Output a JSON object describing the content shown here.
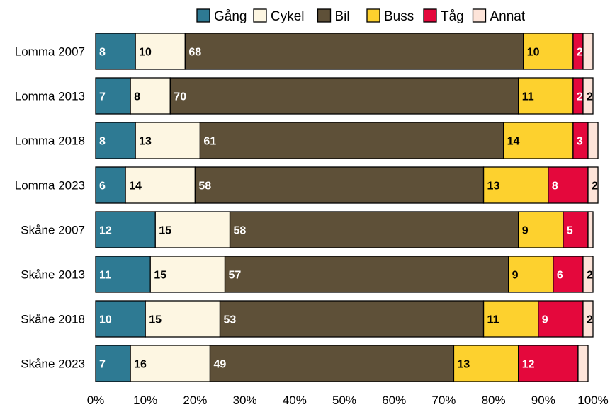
{
  "chart_data": {
    "type": "bar",
    "orientation": "horizontal",
    "stacked": true,
    "categories": [
      "Lomma 2007",
      "Lomma 2013",
      "Lomma 2018",
      "Lomma 2023",
      "Skåne 2007",
      "Skåne 2013",
      "Skåne 2018",
      "Skåne 2023"
    ],
    "series": [
      {
        "name": "Gång",
        "color": "#2e7a93",
        "label_color": "#ffffff",
        "values": [
          8,
          7,
          8,
          6,
          12,
          11,
          10,
          7
        ]
      },
      {
        "name": "Cykel",
        "color": "#fdf6e2",
        "label_color": "#000000",
        "values": [
          10,
          8,
          13,
          14,
          15,
          15,
          15,
          16
        ]
      },
      {
        "name": "Bil",
        "color": "#5e5038",
        "label_color": "#ffffff",
        "values": [
          68,
          70,
          61,
          58,
          58,
          57,
          53,
          49
        ]
      },
      {
        "name": "Buss",
        "color": "#fdd12e",
        "label_color": "#000000",
        "values": [
          10,
          11,
          14,
          13,
          9,
          9,
          11,
          13
        ]
      },
      {
        "name": "Tåg",
        "color": "#e4083c",
        "label_color": "#ffffff",
        "values": [
          2,
          2,
          3,
          8,
          5,
          6,
          9,
          12
        ]
      },
      {
        "name": "Annat",
        "color": "#fde4d9",
        "label_color": "#000000",
        "values": [
          2,
          2,
          2,
          2,
          1,
          2,
          2,
          2
        ]
      }
    ],
    "show_label": [
      [
        true,
        true,
        true,
        true,
        true,
        false
      ],
      [
        true,
        true,
        true,
        true,
        true,
        true
      ],
      [
        true,
        true,
        true,
        true,
        true,
        false
      ],
      [
        true,
        true,
        true,
        true,
        true,
        true
      ],
      [
        true,
        true,
        true,
        true,
        true,
        false
      ],
      [
        true,
        true,
        true,
        true,
        true,
        true
      ],
      [
        true,
        true,
        true,
        true,
        true,
        true
      ],
      [
        true,
        true,
        true,
        true,
        true,
        false
      ]
    ],
    "xlim": [
      0,
      100
    ],
    "x_ticks": [
      "0%",
      "10%",
      "20%",
      "30%",
      "40%",
      "50%",
      "60%",
      "70%",
      "80%",
      "90%",
      "100%"
    ],
    "grid": false,
    "legend_position": "top"
  }
}
